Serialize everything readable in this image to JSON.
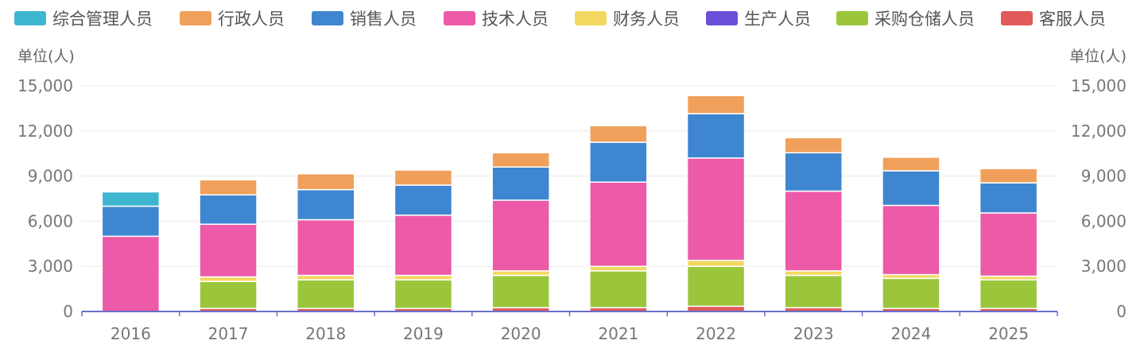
{
  "chart_data": {
    "type": "bar",
    "stacked": true,
    "categories": [
      "2016",
      "2017",
      "2018",
      "2019",
      "2020",
      "2021",
      "2022",
      "2023",
      "2024",
      "2025"
    ],
    "series": [
      {
        "name": "客服人员",
        "color": "#e05a5a",
        "values": [
          0,
          200,
          200,
          200,
          250,
          250,
          350,
          250,
          200,
          200
        ]
      },
      {
        "name": "采购仓储人员",
        "color": "#9bc63c",
        "values": [
          0,
          1800,
          1900,
          1900,
          2150,
          2450,
          2650,
          2150,
          2000,
          1900
        ]
      },
      {
        "name": "生产人员",
        "color": "#6a4fd8",
        "values": [
          0,
          0,
          0,
          0,
          0,
          0,
          0,
          0,
          0,
          0
        ]
      },
      {
        "name": "财务人员",
        "color": "#f2d860",
        "values": [
          0,
          300,
          300,
          300,
          300,
          300,
          400,
          300,
          250,
          250
        ]
      },
      {
        "name": "技术人员",
        "color": "#ec5aa8",
        "values": [
          5000,
          3500,
          3700,
          4000,
          4700,
          5600,
          6800,
          5300,
          4600,
          4200
        ]
      },
      {
        "name": "销售人员",
        "color": "#3f86d0",
        "values": [
          2000,
          1950,
          2000,
          2000,
          2200,
          2650,
          2950,
          2550,
          2300,
          2000
        ]
      },
      {
        "name": "行政人员",
        "color": "#f0a05a",
        "values": [
          0,
          1000,
          1050,
          1000,
          950,
          1100,
          1200,
          1000,
          900,
          950
        ]
      },
      {
        "name": "综合管理人员",
        "color": "#3fb6d0",
        "values": [
          950,
          0,
          0,
          0,
          0,
          0,
          0,
          0,
          0,
          0
        ]
      }
    ],
    "legend_order": [
      "综合管理人员",
      "行政人员",
      "销售人员",
      "技术人员",
      "财务人员",
      "生产人员",
      "采购仓储人员",
      "客服人员"
    ],
    "y_ticks": [
      "0",
      "3,000",
      "6,000",
      "9,000",
      "12,000",
      "15,000"
    ],
    "ylim": [
      0,
      15000
    ],
    "y_unit_left": "单位(人)",
    "y_unit_right": "单位(人)",
    "legend_position": "top",
    "grid": true,
    "dual_y_axis": true,
    "axis_color": "#6a6fc8",
    "grid_color": "#e8e8e8"
  }
}
